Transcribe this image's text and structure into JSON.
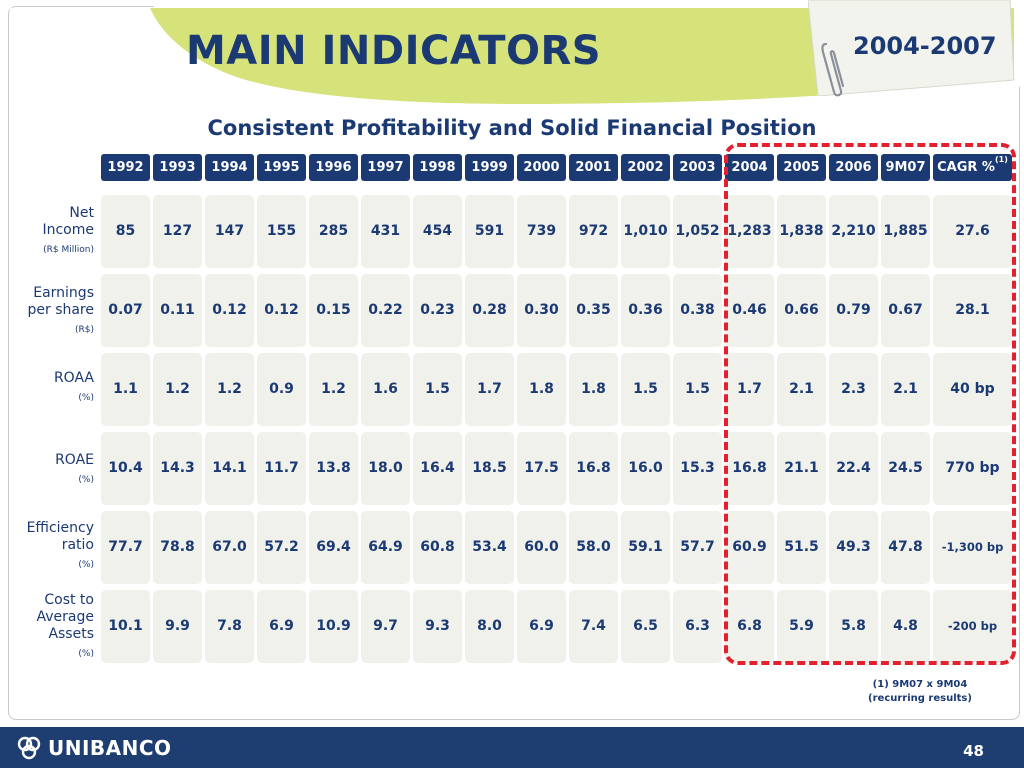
{
  "slide": {
    "title": "MAIN INDICATORS",
    "period": "2004-2007",
    "subtitle": "Consistent Profitability and Solid Financial Position",
    "footnote_line1": "(1) 9M07 x 9M04",
    "footnote_line2": "(recurring results)",
    "logo_text": "UNIBANCO",
    "page_number": "48",
    "colors": {
      "navy": "#1b3a73",
      "lime": "#d6e27a",
      "cell_bg": "#f1f1ec",
      "highlight": "#e3202e"
    },
    "icons": [
      "paperclip-icon",
      "unibanco-logo-icon"
    ]
  },
  "table": {
    "columns": [
      "1992",
      "1993",
      "1994",
      "1995",
      "1996",
      "1997",
      "1998",
      "1999",
      "2000",
      "2001",
      "2002",
      "2003",
      "2004",
      "2005",
      "2006",
      "9M07",
      "CAGR %"
    ],
    "cagr_footnote_marker": "(1)",
    "rows": [
      {
        "label": "Net Income",
        "label_lines": [
          "Net",
          "Income"
        ],
        "unit": "(R$ Million)",
        "values": [
          "85",
          "127",
          "147",
          "155",
          "285",
          "431",
          "454",
          "591",
          "739",
          "972",
          "1,010",
          "1,052",
          "1,283",
          "1,838",
          "2,210",
          "1,885",
          "27.6"
        ]
      },
      {
        "label": "Earnings per share",
        "label_lines": [
          "Earnings",
          "per share"
        ],
        "unit": "(R$)",
        "values": [
          "0.07",
          "0.11",
          "0.12",
          "0.12",
          "0.15",
          "0.22",
          "0.23",
          "0.28",
          "0.30",
          "0.35",
          "0.36",
          "0.38",
          "0.46",
          "0.66",
          "0.79",
          "0.67",
          "28.1"
        ]
      },
      {
        "label": "ROAA",
        "label_lines": [
          "ROAA"
        ],
        "unit": "(%)",
        "values": [
          "1.1",
          "1.2",
          "1.2",
          "0.9",
          "1.2",
          "1.6",
          "1.5",
          "1.7",
          "1.8",
          "1.8",
          "1.5",
          "1.5",
          "1.7",
          "2.1",
          "2.3",
          "2.1",
          "40 bp"
        ]
      },
      {
        "label": "ROAE",
        "label_lines": [
          "ROAE"
        ],
        "unit": "(%)",
        "values": [
          "10.4",
          "14.3",
          "14.1",
          "11.7",
          "13.8",
          "18.0",
          "16.4",
          "18.5",
          "17.5",
          "16.8",
          "16.0",
          "15.3",
          "16.8",
          "21.1",
          "22.4",
          "24.5",
          "770 bp"
        ]
      },
      {
        "label": "Efficiency ratio",
        "label_lines": [
          "Efficiency",
          "ratio"
        ],
        "unit": "(%)",
        "values": [
          "77.7",
          "78.8",
          "67.0",
          "57.2",
          "69.4",
          "64.9",
          "60.8",
          "53.4",
          "60.0",
          "58.0",
          "59.1",
          "57.7",
          "60.9",
          "51.5",
          "49.3",
          "47.8",
          "-1,300 bp"
        ]
      },
      {
        "label": "Cost to Average Assets",
        "label_lines": [
          "Cost to",
          "Average",
          "Assets"
        ],
        "unit": "(%)",
        "values": [
          "10.1",
          "9.9",
          "7.8",
          "6.9",
          "10.9",
          "9.7",
          "9.3",
          "8.0",
          "6.9",
          "7.4",
          "6.5",
          "6.3",
          "6.8",
          "5.9",
          "5.8",
          "4.8",
          "-200 bp"
        ]
      }
    ]
  }
}
